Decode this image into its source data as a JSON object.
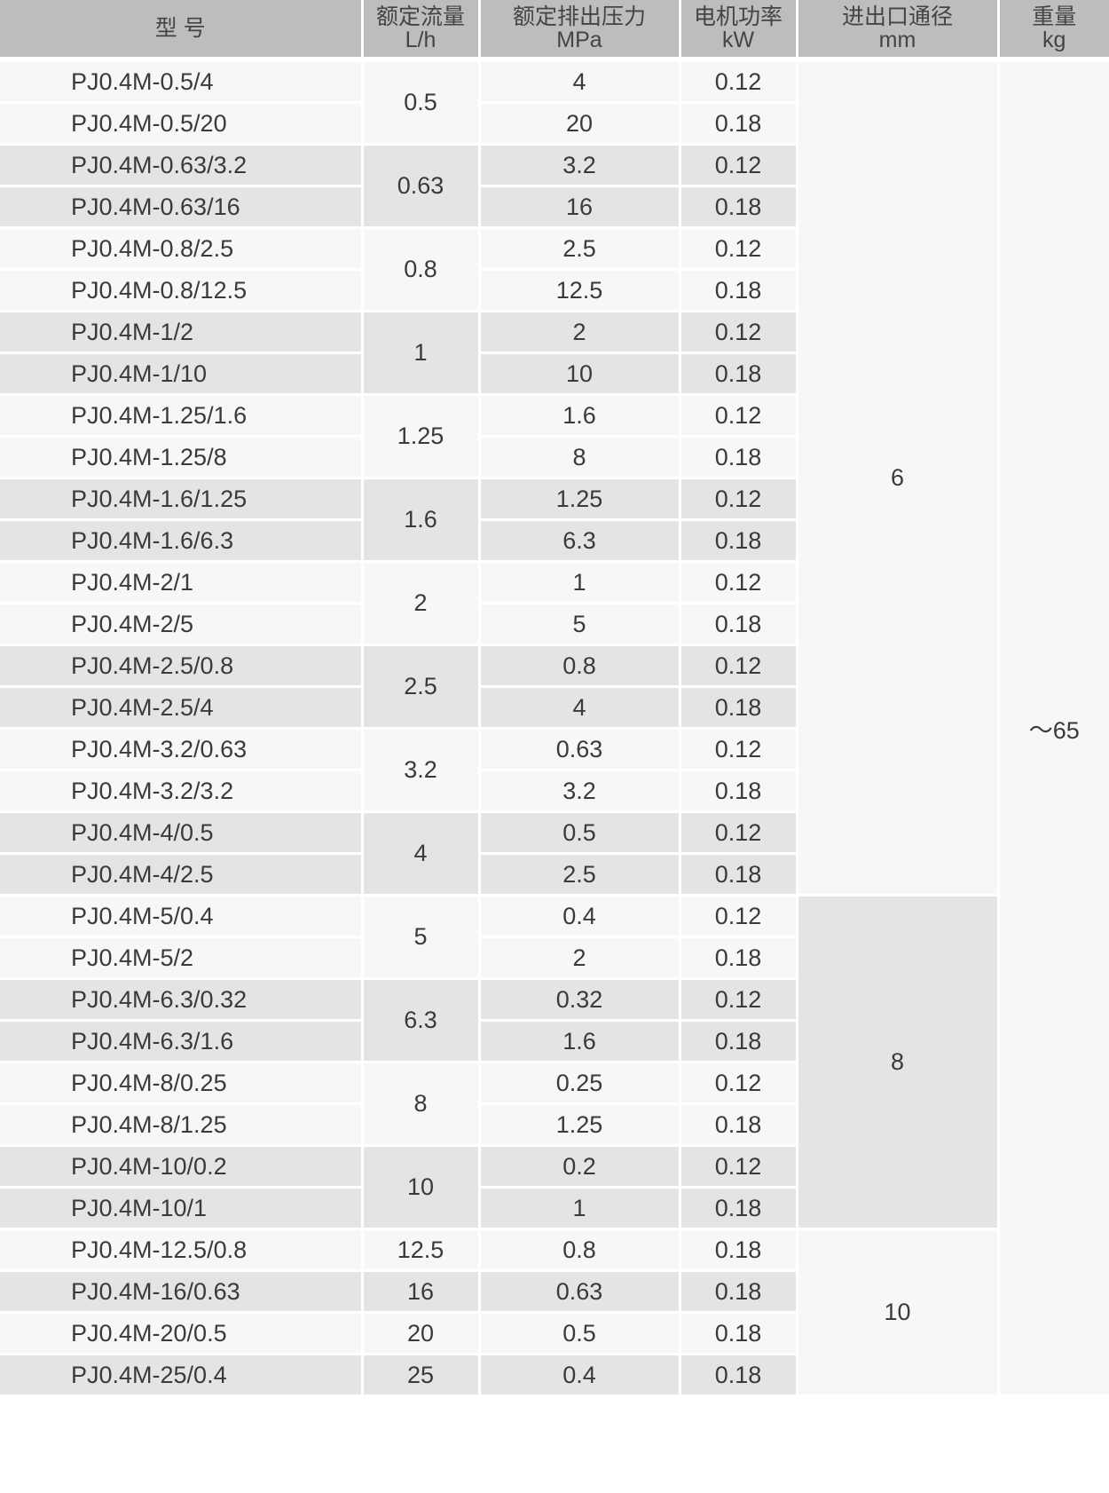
{
  "headers": [
    {
      "line1": "型 号",
      "line2": ""
    },
    {
      "line1": "额定流量",
      "line2": "L/h"
    },
    {
      "line1": "额定排出压力",
      "line2": "MPa"
    },
    {
      "line1": "电机功率",
      "line2": "kW"
    },
    {
      "line1": "进出口通径",
      "line2": "mm"
    },
    {
      "line1": "重量",
      "line2": "kg"
    }
  ],
  "colors": {
    "header_bg": "#bdbdbd",
    "row_light": "#f6f7f7",
    "row_dark": "#e4e4e6",
    "text": "#3a3a3a"
  },
  "rows": [
    {
      "model": "PJ0.4M-0.5/4",
      "flow": "0.5",
      "pressure": "4",
      "power": "0.12",
      "diameter": "6",
      "weight": "～65"
    },
    {
      "model": "PJ0.4M-0.5/20",
      "flow": "0.5",
      "pressure": "20",
      "power": "0.18",
      "diameter": "6",
      "weight": "～65"
    },
    {
      "model": "PJ0.4M-0.63/3.2",
      "flow": "0.63",
      "pressure": "3.2",
      "power": "0.12",
      "diameter": "6",
      "weight": "～65"
    },
    {
      "model": "PJ0.4M-0.63/16",
      "flow": "0.63",
      "pressure": "16",
      "power": "0.18",
      "diameter": "6",
      "weight": "～65"
    },
    {
      "model": "PJ0.4M-0.8/2.5",
      "flow": "0.8",
      "pressure": "2.5",
      "power": "0.12",
      "diameter": "6",
      "weight": "～65"
    },
    {
      "model": "PJ0.4M-0.8/12.5",
      "flow": "0.8",
      "pressure": "12.5",
      "power": "0.18",
      "diameter": "6",
      "weight": "～65"
    },
    {
      "model": "PJ0.4M-1/2",
      "flow": "1",
      "pressure": "2",
      "power": "0.12",
      "diameter": "6",
      "weight": "～65"
    },
    {
      "model": "PJ0.4M-1/10",
      "flow": "1",
      "pressure": "10",
      "power": "0.18",
      "diameter": "6",
      "weight": "～65"
    },
    {
      "model": "PJ0.4M-1.25/1.6",
      "flow": "1.25",
      "pressure": "1.6",
      "power": "0.12",
      "diameter": "6",
      "weight": "～65"
    },
    {
      "model": "PJ0.4M-1.25/8",
      "flow": "1.25",
      "pressure": "8",
      "power": "0.18",
      "diameter": "6",
      "weight": "～65"
    },
    {
      "model": "PJ0.4M-1.6/1.25",
      "flow": "1.6",
      "pressure": "1.25",
      "power": "0.12",
      "diameter": "6",
      "weight": "～65"
    },
    {
      "model": "PJ0.4M-1.6/6.3",
      "flow": "1.6",
      "pressure": "6.3",
      "power": "0.18",
      "diameter": "6",
      "weight": "～65"
    },
    {
      "model": "PJ0.4M-2/1",
      "flow": "2",
      "pressure": "1",
      "power": "0.12",
      "diameter": "6",
      "weight": "～65"
    },
    {
      "model": "PJ0.4M-2/5",
      "flow": "2",
      "pressure": "5",
      "power": "0.18",
      "diameter": "6",
      "weight": "～65"
    },
    {
      "model": "PJ0.4M-2.5/0.8",
      "flow": "2.5",
      "pressure": "0.8",
      "power": "0.12",
      "diameter": "6",
      "weight": "～65"
    },
    {
      "model": "PJ0.4M-2.5/4",
      "flow": "2.5",
      "pressure": "4",
      "power": "0.18",
      "diameter": "6",
      "weight": "～65"
    },
    {
      "model": "PJ0.4M-3.2/0.63",
      "flow": "3.2",
      "pressure": "0.63",
      "power": "0.12",
      "diameter": "6",
      "weight": "～65"
    },
    {
      "model": "PJ0.4M-3.2/3.2",
      "flow": "3.2",
      "pressure": "3.2",
      "power": "0.18",
      "diameter": "6",
      "weight": "～65"
    },
    {
      "model": "PJ0.4M-4/0.5",
      "flow": "4",
      "pressure": "0.5",
      "power": "0.12",
      "diameter": "6",
      "weight": "～65"
    },
    {
      "model": "PJ0.4M-4/2.5",
      "flow": "4",
      "pressure": "2.5",
      "power": "0.18",
      "diameter": "6",
      "weight": "～65"
    },
    {
      "model": "PJ0.4M-5/0.4",
      "flow": "5",
      "pressure": "0.4",
      "power": "0.12",
      "diameter": "8",
      "weight": "～65"
    },
    {
      "model": "PJ0.4M-5/2",
      "flow": "5",
      "pressure": "2",
      "power": "0.18",
      "diameter": "8",
      "weight": "～65"
    },
    {
      "model": "PJ0.4M-6.3/0.32",
      "flow": "6.3",
      "pressure": "0.32",
      "power": "0.12",
      "diameter": "8",
      "weight": "～65"
    },
    {
      "model": "PJ0.4M-6.3/1.6",
      "flow": "6.3",
      "pressure": "1.6",
      "power": "0.18",
      "diameter": "8",
      "weight": "～65"
    },
    {
      "model": "PJ0.4M-8/0.25",
      "flow": "8",
      "pressure": "0.25",
      "power": "0.12",
      "diameter": "8",
      "weight": "～65"
    },
    {
      "model": "PJ0.4M-8/1.25",
      "flow": "8",
      "pressure": "1.25",
      "power": "0.18",
      "diameter": "8",
      "weight": "～65"
    },
    {
      "model": "PJ0.4M-10/0.2",
      "flow": "10",
      "pressure": "0.2",
      "power": "0.12",
      "diameter": "8",
      "weight": "～65"
    },
    {
      "model": "PJ0.4M-10/1",
      "flow": "10",
      "pressure": "1",
      "power": "0.18",
      "diameter": "8",
      "weight": "～65"
    },
    {
      "model": "PJ0.4M-12.5/0.8",
      "flow": "12.5",
      "pressure": "0.8",
      "power": "0.18",
      "diameter": "10",
      "weight": "～65"
    },
    {
      "model": "PJ0.4M-16/0.63",
      "flow": "16",
      "pressure": "0.63",
      "power": "0.18",
      "diameter": "10",
      "weight": "～65"
    },
    {
      "model": "PJ0.4M-20/0.5",
      "flow": "20",
      "pressure": "0.5",
      "power": "0.18",
      "diameter": "10",
      "weight": "～65"
    },
    {
      "model": "PJ0.4M-25/0.4",
      "flow": "25",
      "pressure": "0.4",
      "power": "0.18",
      "diameter": "10",
      "weight": "～65"
    }
  ]
}
